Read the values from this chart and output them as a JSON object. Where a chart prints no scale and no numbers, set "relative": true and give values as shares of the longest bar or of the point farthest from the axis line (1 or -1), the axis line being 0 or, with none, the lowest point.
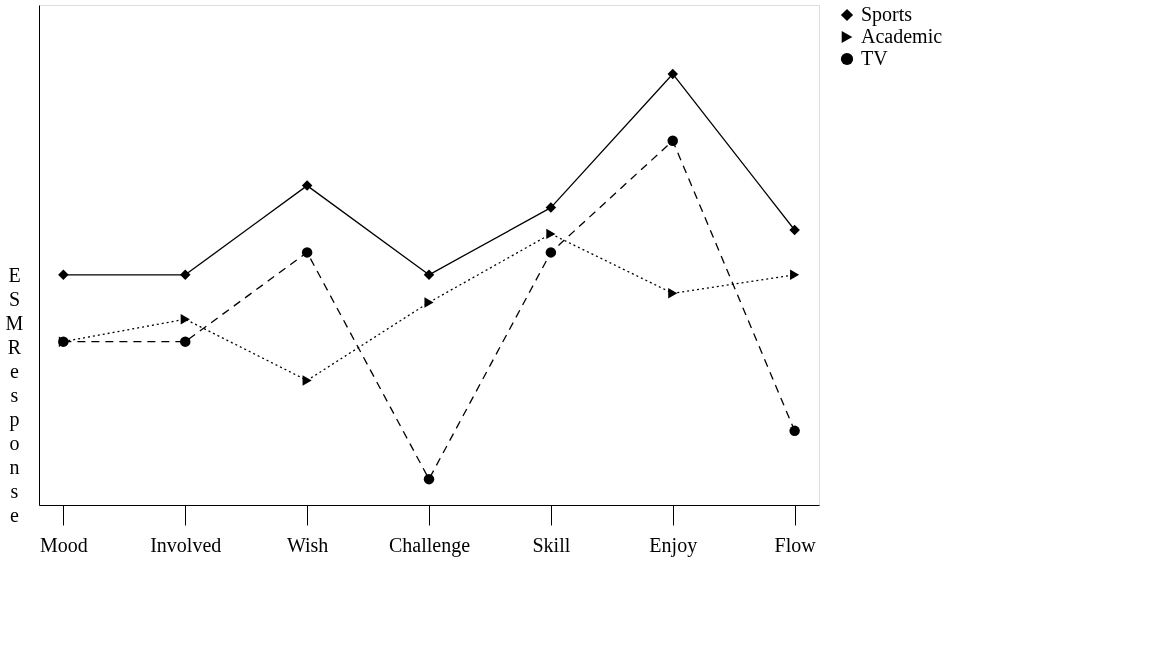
{
  "chart_data": {
    "type": "line",
    "ylabel": "ESM Response",
    "relative": true,
    "legend": "right",
    "grid": false,
    "categories": [
      "Mood",
      "Involved",
      "Wish",
      "Challenge",
      "Skill",
      "Enjoy",
      "Flow"
    ],
    "series": [
      {
        "name": "Sports",
        "color": "#000000",
        "marker": "diamond",
        "line_style": "solid",
        "values": [
          0.534,
          0.534,
          0.741,
          0.534,
          0.69,
          1,
          0.638
        ]
      },
      {
        "name": "Academic",
        "color": "#000000",
        "marker": "triangle",
        "line_style": "dotted",
        "values": [
          0.379,
          0.431,
          0.289,
          0.47,
          0.629,
          0.491,
          0.534
        ]
      },
      {
        "name": "TV",
        "color": "#000000",
        "marker": "circle",
        "line_style": "dashed",
        "values": [
          0.379,
          0.379,
          0.586,
          0.06,
          0.586,
          0.845,
          0.172
        ]
      }
    ]
  }
}
